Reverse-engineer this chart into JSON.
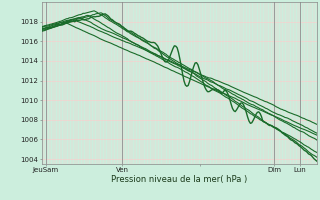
{
  "title": "",
  "xlabel": "Pression niveau de la mer( hPa )",
  "ylabel": "",
  "bg_color": "#cceedd",
  "grid_h_color": "#ffcccc",
  "grid_v_color": "#ffcccc",
  "line_color": "#1a6b2a",
  "ylim": [
    1003.5,
    1020.0
  ],
  "yticks": [
    1004,
    1006,
    1008,
    1010,
    1012,
    1014,
    1016,
    1018
  ],
  "xlim": [
    0,
    130
  ],
  "xtick_positions": [
    2,
    38,
    75,
    110,
    122
  ],
  "xtick_labels": [
    "JeuSam",
    "Ven",
    "",
    "Dim",
    "Lun"
  ],
  "vline_positions": [
    2,
    38,
    110,
    122
  ],
  "n_points": 200
}
